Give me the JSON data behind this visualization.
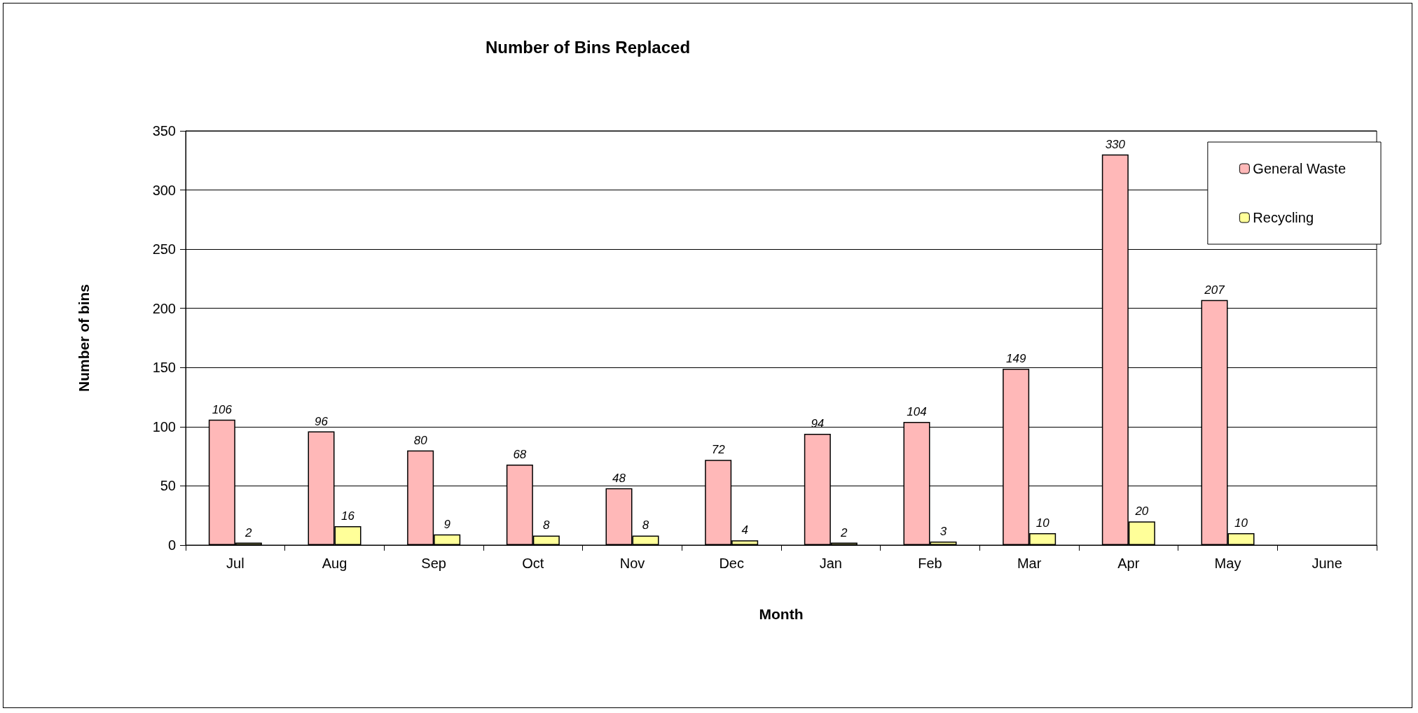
{
  "chart_data": {
    "type": "bar",
    "title": "Number of Bins Replaced",
    "xlabel": "Month",
    "ylabel": "Number of bins",
    "categories": [
      "Jul",
      "Aug",
      "Sep",
      "Oct",
      "Nov",
      "Dec",
      "Jan",
      "Feb",
      "Mar",
      "Apr",
      "May",
      "June"
    ],
    "series": [
      {
        "name": "General Waste",
        "color": "#ffb8b8",
        "values": [
          106,
          96,
          80,
          68,
          48,
          72,
          94,
          104,
          149,
          330,
          207,
          null
        ]
      },
      {
        "name": "Recycling",
        "color": "#ffff99",
        "values": [
          2,
          16,
          9,
          8,
          8,
          4,
          2,
          3,
          10,
          20,
          10,
          null
        ]
      }
    ],
    "ylim": [
      0,
      350
    ],
    "yticks": [
      0,
      50,
      100,
      150,
      200,
      250,
      300,
      350
    ],
    "grid": "y",
    "legend": "top right",
    "data_labels": true
  }
}
